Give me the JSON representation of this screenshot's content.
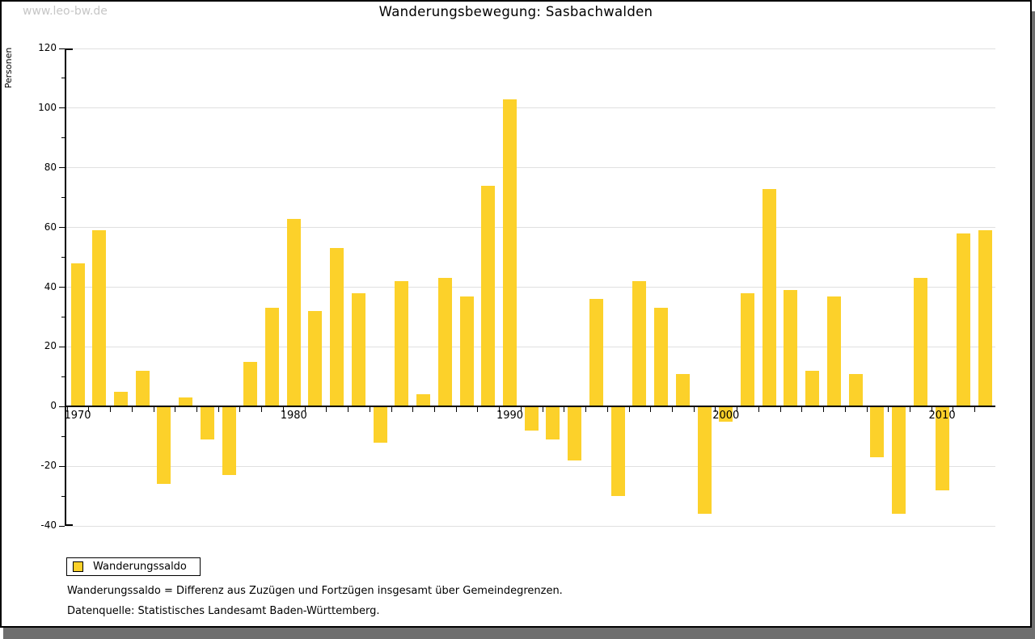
{
  "watermark": "www.leo-bw.de",
  "title": "Wanderungsbewegung: Sasbachwalden",
  "legend": {
    "label": "Wanderungssaldo"
  },
  "footnotes": {
    "definition": "Wanderungssaldo = Differenz aus Zuzügen und Fortzügen insgesamt über Gemeindegrenzen.",
    "source": "Datenquelle: Statistisches Landesamt Baden-Württemberg."
  },
  "colors": {
    "bar": "#FCD12A",
    "grid": "#E0E0E0",
    "axis": "#000000",
    "watermark": "#C6C6C6",
    "shadow": "#6E6E6E",
    "background": "#FFFFFF"
  },
  "chart_data": {
    "type": "bar",
    "title": "Wanderungsbewegung: Sasbachwalden",
    "xlabel": "",
    "ylabel": "Personen",
    "series_name": "Wanderungssaldo",
    "x": [
      1970,
      1971,
      1972,
      1973,
      1974,
      1975,
      1976,
      1977,
      1978,
      1979,
      1980,
      1981,
      1982,
      1983,
      1984,
      1985,
      1986,
      1987,
      1988,
      1989,
      1990,
      1991,
      1992,
      1993,
      1994,
      1995,
      1996,
      1997,
      1998,
      1999,
      2000,
      2001,
      2002,
      2003,
      2004,
      2005,
      2006,
      2007,
      2008,
      2009,
      2010,
      2011,
      2012
    ],
    "values": [
      48,
      59,
      5,
      12,
      -26,
      3,
      -11,
      -23,
      15,
      33,
      63,
      32,
      53,
      38,
      -12,
      42,
      4,
      43,
      37,
      74,
      103,
      -8,
      -11,
      -18,
      36,
      -30,
      42,
      33,
      11,
      -36,
      -5,
      38,
      73,
      39,
      12,
      37,
      11,
      -17,
      -36,
      43,
      -28,
      58,
      59
    ],
    "ylim": [
      -40,
      120
    ],
    "ytick_labels": [
      120,
      100,
      80,
      60,
      40,
      20,
      0,
      -20,
      -40
    ],
    "ytick_minor_step": 10,
    "xtick_labels": [
      1970,
      1980,
      1990,
      2000,
      2010
    ],
    "grid": true,
    "legend_position": "bottom-left"
  }
}
